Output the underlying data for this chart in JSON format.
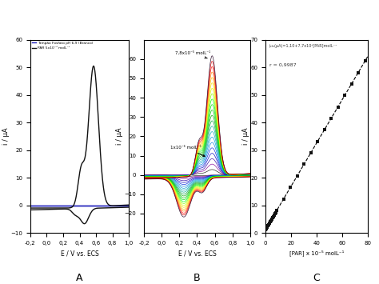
{
  "panel_A": {
    "title": "A",
    "xlabel": "E / V vs. ECS",
    "ylabel": "i / μA",
    "xlim": [
      -0.2,
      1.0
    ],
    "ylim": [
      -10,
      60
    ],
    "yticks": [
      -10,
      0,
      10,
      20,
      30,
      40,
      50,
      60
    ],
    "xtick_labels": [
      "-0,2",
      "0,0",
      "0,2",
      "0,4",
      "0,6",
      "0,8",
      "1,0"
    ],
    "xticks": [
      -0.2,
      0.0,
      0.2,
      0.4,
      0.6,
      0.8,
      1.0
    ],
    "legend_blue": "Tampão Fosfato pH 6,9 (Branco)",
    "legend_black": "PAR 5x10⁻⁵ molL⁻¹",
    "blue_color": "#2020bb",
    "black_color": "#111111"
  },
  "panel_B": {
    "title": "B",
    "xlabel": "E / V vs. ECS",
    "ylabel": "i / μA",
    "xlim": [
      -0.2,
      1.0
    ],
    "ylim": [
      -30,
      70
    ],
    "yticks": [
      -20,
      -10,
      0,
      10,
      20,
      30,
      40,
      50,
      60
    ],
    "xtick_labels": [
      "-0,2",
      "0,0",
      "0,2",
      "0,4",
      "0,6",
      "0,8",
      "1,0"
    ],
    "xticks": [
      -0.2,
      0.0,
      0.2,
      0.4,
      0.6,
      0.8,
      1.0
    ],
    "label_top": "7,8x10⁻⁵ molL⁻¹",
    "label_bottom": "1x10⁻⁶ molL⁻¹",
    "num_curves": 22
  },
  "panel_C": {
    "title": "C",
    "xlabel": "[PAR] x 10⁻⁵ molL⁻¹",
    "ylabel": "i / μA",
    "xlim": [
      0,
      80
    ],
    "ylim": [
      0,
      70
    ],
    "yticks": [
      0,
      10,
      20,
      30,
      40,
      50,
      60,
      70
    ],
    "xticks": [
      0,
      20,
      40,
      60,
      80
    ],
    "equation": "iₚ₂ₙ(μA)=1,10+7,7x10³[PAR]molL⁻¹",
    "r_value": "r = 0,9987",
    "marker_color": "#111111"
  }
}
